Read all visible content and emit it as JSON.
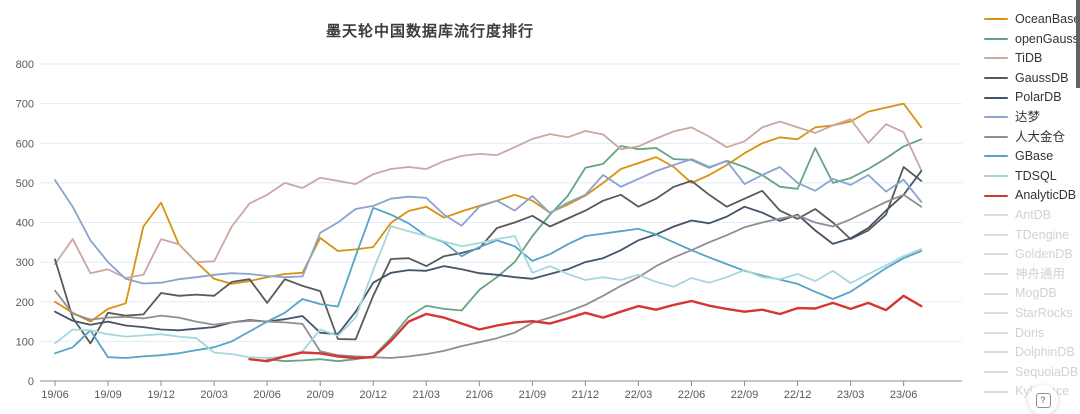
{
  "title": "墨天轮中国数据库流行度排行",
  "help_button": {
    "glyph": "?"
  },
  "style": {
    "grid_color": "#e2ebf6",
    "axis_color": "#8c8c8c",
    "tick_label_color": "#595959",
    "active_label_color": "#333333",
    "inactive_label_color": "#d2d2d2",
    "inactive_line_color": "#dcdcdc"
  },
  "chart_data": {
    "type": "line",
    "title": "墨天轮中国数据库流行度排行",
    "xlabel": "",
    "ylabel": "",
    "ylim": [
      0,
      800
    ],
    "yticks": [
      0,
      100,
      200,
      300,
      400,
      500,
      600,
      700,
      800
    ],
    "grid": true,
    "legend_position": "right",
    "x": [
      "19/06",
      "19/07",
      "19/08",
      "19/09",
      "19/10",
      "19/11",
      "19/12",
      "20/01",
      "20/02",
      "20/03",
      "20/04",
      "20/05",
      "20/06",
      "20/07",
      "20/08",
      "20/09",
      "20/10",
      "20/11",
      "20/12",
      "21/01",
      "21/02",
      "21/03",
      "21/04",
      "21/05",
      "21/06",
      "21/07",
      "21/08",
      "21/09",
      "21/10",
      "21/11",
      "21/12",
      "22/01",
      "22/02",
      "22/03",
      "22/04",
      "22/05",
      "22/06",
      "22/07",
      "22/08",
      "22/09",
      "22/10",
      "22/11",
      "22/12",
      "23/01",
      "23/02",
      "23/03",
      "23/04",
      "23/05",
      "23/06",
      "23/07"
    ],
    "x_tick_every": 3,
    "x_tick_labels": [
      "19/06",
      "19/09",
      "19/12",
      "20/03",
      "20/06",
      "20/09",
      "20/12",
      "21/03",
      "21/06",
      "21/09",
      "21/12",
      "22/03",
      "22/06",
      "22/09",
      "22/12",
      "23/03",
      "23/06"
    ],
    "series": [
      {
        "name": "OceanBase",
        "color": "#d8920f",
        "values": [
          200,
          172,
          150,
          182,
          196,
          390,
          450,
          345,
          300,
          258,
          245,
          252,
          262,
          270,
          273,
          361,
          328,
          332,
          338,
          399,
          429,
          440,
          412,
          428,
          442,
          455,
          470,
          455,
          425,
          445,
          468,
          500,
          535,
          550,
          565,
          540,
          500,
          520,
          545,
          575,
          600,
          615,
          610,
          640,
          645,
          655,
          680,
          690,
          700,
          640
        ]
      },
      {
        "name": "openGauss",
        "color": "#65a385",
        "values": [
          null,
          null,
          null,
          null,
          null,
          null,
          null,
          null,
          null,
          null,
          null,
          null,
          55,
          50,
          52,
          55,
          50,
          55,
          62,
          108,
          162,
          190,
          182,
          178,
          230,
          262,
          300,
          366,
          420,
          467,
          538,
          548,
          593,
          585,
          588,
          560,
          558,
          538,
          556,
          540,
          520,
          490,
          485,
          588,
          500,
          512,
          535,
          562,
          592,
          610
        ]
      },
      {
        "name": "TiDB",
        "color": "#c9a8a2",
        "values": [
          295,
          358,
          272,
          282,
          260,
          268,
          358,
          345,
          300,
          302,
          390,
          448,
          470,
          500,
          487,
          513,
          505,
          497,
          522,
          535,
          540,
          535,
          555,
          568,
          573,
          570,
          590,
          611,
          623,
          615,
          631,
          622,
          585,
          592,
          612,
          630,
          640,
          617,
          590,
          605,
          640,
          655,
          640,
          626,
          645,
          661,
          601,
          648,
          628,
          532
        ]
      },
      {
        "name": "GaussDB",
        "color": "#595959",
        "values": [
          307,
          160,
          95,
          172,
          165,
          168,
          222,
          215,
          218,
          215,
          250,
          257,
          197,
          257,
          240,
          227,
          106,
          105,
          215,
          308,
          310,
          290,
          315,
          323,
          335,
          386,
          400,
          417,
          390,
          410,
          430,
          455,
          470,
          440,
          460,
          490,
          505,
          470,
          440,
          460,
          480,
          430,
          409,
          434,
          400,
          358,
          380,
          420,
          540,
          505
        ]
      },
      {
        "name": "PolarDB",
        "color": "#44546a",
        "values": [
          175,
          152,
          142,
          150,
          140,
          136,
          130,
          128,
          132,
          136,
          148,
          154,
          150,
          156,
          164,
          122,
          118,
          175,
          248,
          273,
          280,
          278,
          290,
          282,
          272,
          268,
          262,
          258,
          270,
          282,
          300,
          310,
          330,
          355,
          370,
          390,
          405,
          398,
          415,
          440,
          425,
          404,
          420,
          380,
          346,
          360,
          386,
          430,
          470,
          530
        ]
      },
      {
        "name": "达梦",
        "color": "#89a4cd",
        "values": [
          507,
          440,
          355,
          300,
          258,
          246,
          248,
          257,
          262,
          268,
          272,
          270,
          265,
          262,
          264,
          374,
          400,
          434,
          442,
          460,
          465,
          462,
          420,
          392,
          440,
          455,
          430,
          467,
          424,
          450,
          470,
          520,
          490,
          510,
          530,
          545,
          560,
          540,
          555,
          497,
          520,
          540,
          500,
          480,
          510,
          495,
          520,
          478,
          508,
          452
        ]
      },
      {
        "name": "人大金仓",
        "color": "#8f8f8f",
        "values": [
          228,
          170,
          155,
          160,
          162,
          158,
          165,
          160,
          150,
          142,
          148,
          152,
          150,
          148,
          144,
          75,
          65,
          62,
          60,
          58,
          62,
          68,
          76,
          88,
          98,
          108,
          122,
          147,
          160,
          175,
          192,
          215,
          240,
          262,
          290,
          312,
          330,
          350,
          368,
          388,
          400,
          410,
          418,
          400,
          390,
          408,
          430,
          452,
          470,
          440
        ]
      },
      {
        "name": "GBase",
        "color": "#56a4c6",
        "values": [
          70,
          85,
          128,
          60,
          58,
          62,
          65,
          70,
          78,
          85,
          100,
          125,
          150,
          172,
          207,
          194,
          188,
          315,
          437,
          420,
          398,
          366,
          350,
          315,
          338,
          355,
          340,
          303,
          320,
          345,
          366,
          372,
          378,
          384,
          370,
          350,
          330,
          312,
          295,
          278,
          266,
          256,
          245,
          225,
          207,
          225,
          255,
          285,
          310,
          328
        ]
      },
      {
        "name": "TDSQL",
        "color": "#a5d7dd",
        "values": [
          95,
          130,
          128,
          118,
          112,
          115,
          118,
          112,
          108,
          72,
          68,
          60,
          58,
          62,
          75,
          130,
          114,
          160,
          280,
          391,
          378,
          366,
          352,
          340,
          348,
          358,
          366,
          273,
          290,
          270,
          255,
          262,
          255,
          268,
          250,
          238,
          260,
          248,
          262,
          280,
          262,
          257,
          270,
          252,
          278,
          247,
          270,
          292,
          315,
          333
        ]
      },
      {
        "name": "AnalyticDB",
        "color": "#d53632",
        "values": [
          null,
          null,
          null,
          null,
          null,
          null,
          null,
          null,
          null,
          null,
          null,
          55,
          50,
          62,
          72,
          70,
          62,
          58,
          60,
          101,
          150,
          169,
          160,
          145,
          130,
          140,
          148,
          151,
          145,
          158,
          172,
          160,
          175,
          189,
          180,
          192,
          202,
          190,
          182,
          175,
          180,
          169,
          184,
          183,
          197,
          182,
          197,
          179,
          215,
          189
        ]
      }
    ],
    "inactive_series": [
      {
        "name": "AntDB"
      },
      {
        "name": "TDengine"
      },
      {
        "name": "GoldenDB"
      },
      {
        "name": "神舟通用"
      },
      {
        "name": "MogDB"
      },
      {
        "name": "StarRocks"
      },
      {
        "name": "Doris"
      },
      {
        "name": "DolphinDB"
      },
      {
        "name": "SequoiaDB"
      },
      {
        "name": "Kyligence"
      }
    ]
  }
}
